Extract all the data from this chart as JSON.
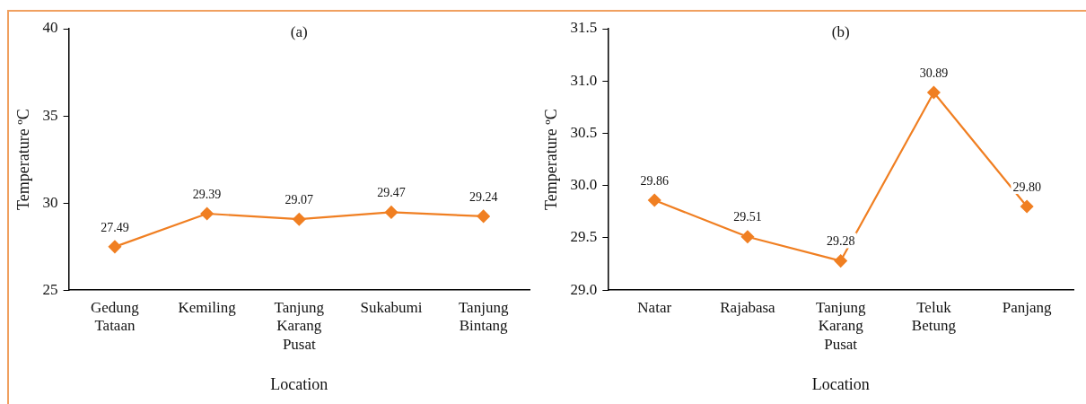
{
  "chart_data": [
    {
      "type": "line",
      "title": "(a)",
      "xlabel": "Location",
      "ylabel": "Temperature ºC",
      "categories": [
        "Gedung Tataan",
        "Kemiling",
        "Tanjung Karang Pusat",
        "Sukabumi",
        "Tanjung Bintang"
      ],
      "series": [
        {
          "color": "#f07f22",
          "values": [
            27.49,
            29.39,
            29.07,
            29.47,
            29.24
          ],
          "value_labels": [
            "27.49",
            "29.39",
            "29.07",
            "29.47",
            "29.24"
          ]
        }
      ],
      "ylim": [
        25,
        40
      ],
      "yticks": [
        25,
        30,
        35,
        40
      ],
      "grid": false,
      "legend": false,
      "marker": "diamond",
      "line_style": "solid"
    },
    {
      "type": "line",
      "title": "(b)",
      "xlabel": "Location",
      "ylabel": "Temperature ºC",
      "categories": [
        "Natar",
        "Rajabasa",
        "Tanjung Karang Pusat",
        "Teluk Betung",
        "Panjang"
      ],
      "series": [
        {
          "color": "#f07f22",
          "values": [
            29.86,
            29.51,
            29.28,
            30.89,
            29.8
          ],
          "value_labels": [
            "29.86",
            "29.51",
            "29.28",
            "30.89",
            "29.80"
          ]
        }
      ],
      "ylim": [
        29,
        31.5
      ],
      "yticks": [
        {
          "value": 29,
          "label": "29.0"
        },
        {
          "value": 29.5,
          "label": "29.5"
        },
        {
          "value": 30,
          "label": "30.0"
        },
        {
          "value": 30.5,
          "label": "30.5"
        },
        {
          "value": 31,
          "label": "31.0"
        },
        {
          "value": 31.5,
          "label": "31.5"
        }
      ],
      "grid": false,
      "legend": false,
      "marker": "diamond",
      "line_style": "solid"
    }
  ]
}
